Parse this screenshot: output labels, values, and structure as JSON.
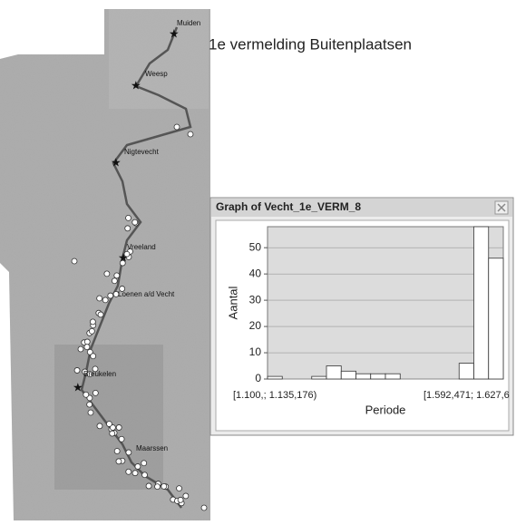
{
  "map": {
    "annotation": "1e vermelding Buitenplaatsen",
    "places": [
      "Muiden",
      "Weesp",
      "Nigtevecht",
      "Vreeland",
      "Loenen a/d Vecht",
      "Breukelen",
      "Maarssen"
    ]
  },
  "window": {
    "title": "Graph of Vecht_1e_VERM_8"
  },
  "chart_data": {
    "type": "histogram",
    "x_label": "Periode",
    "y_label": "Aantal",
    "categories": [
      "[1.100,; 1.135,176)",
      null,
      null,
      null,
      null,
      null,
      null,
      null,
      null,
      null,
      null,
      null,
      null,
      "[1.592,471; 1.627,6",
      null,
      null
    ],
    "values": [
      1,
      0,
      0,
      1,
      5,
      3,
      2,
      2,
      2,
      0,
      0,
      0,
      0,
      6,
      58,
      46
    ],
    "ylim": [
      0,
      58
    ],
    "yticks": [
      0,
      10,
      20,
      30,
      40,
      50
    ],
    "grid": true,
    "color": "#ffffff"
  }
}
